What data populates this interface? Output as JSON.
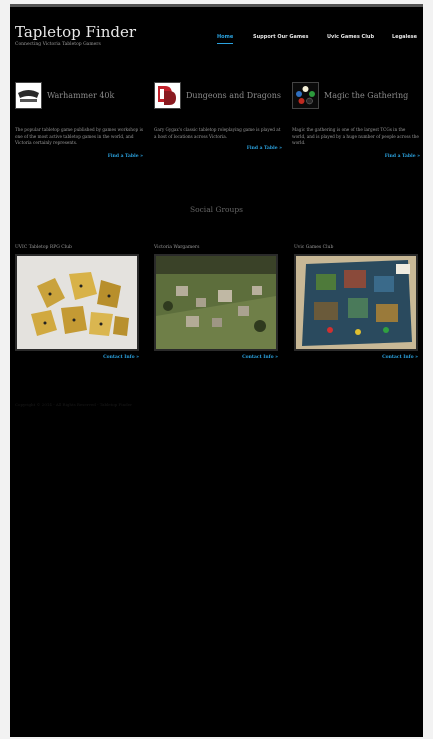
{
  "site": {
    "title": "Tapletop Finder",
    "tagline": "Connecting Victoria Tabletop Gamers"
  },
  "nav": [
    {
      "label": "Home",
      "active": true
    },
    {
      "label": "Support Our Games",
      "active": false
    },
    {
      "label": "Uvic Games Club",
      "active": false
    },
    {
      "label": "Legalese",
      "active": false
    }
  ],
  "games": [
    {
      "name": "Warhammer 40k",
      "icon": "warhammer-logo-icon",
      "description": "The popular tabletop game published by games workshop is one of the most active tabletop games in the world, and Victoria certainly represents.",
      "link": "Find a Table »"
    },
    {
      "name": "Dungeons and Dragons",
      "icon": "dnd-logo-icon",
      "description": "Gary Gygax's classic tabletop roleplaying game is played at a host of locations across Victoria.",
      "link": "Find a Table »"
    },
    {
      "name": "Magic the Gathering",
      "icon": "mtg-logo-icon",
      "description": "Magic the gathering is one of the largest TCGs in the world, and is played by a huge number of people across the world.",
      "link": "Find a Table »"
    }
  ],
  "social": {
    "heading": "Social Groups",
    "groups": [
      {
        "name": "UVIC Tabletop RPG Club",
        "photo": "gold-dice-photo",
        "link": "Contact Info »"
      },
      {
        "name": "Victoria Wargamers",
        "photo": "wargame-terrain-photo",
        "link": "Contact Info »"
      },
      {
        "name": "Uvic Games Club",
        "photo": "board-game-photo",
        "link": "Contact Info »"
      }
    ]
  },
  "footer": {
    "copyright": "Copyright © 2014 - All Rights Reserved - Tabletop Finder"
  },
  "colors": {
    "background": "#000000",
    "accent": "#2ba3e0",
    "text": "#e8e8e8",
    "muted": "#9a9a9a"
  }
}
